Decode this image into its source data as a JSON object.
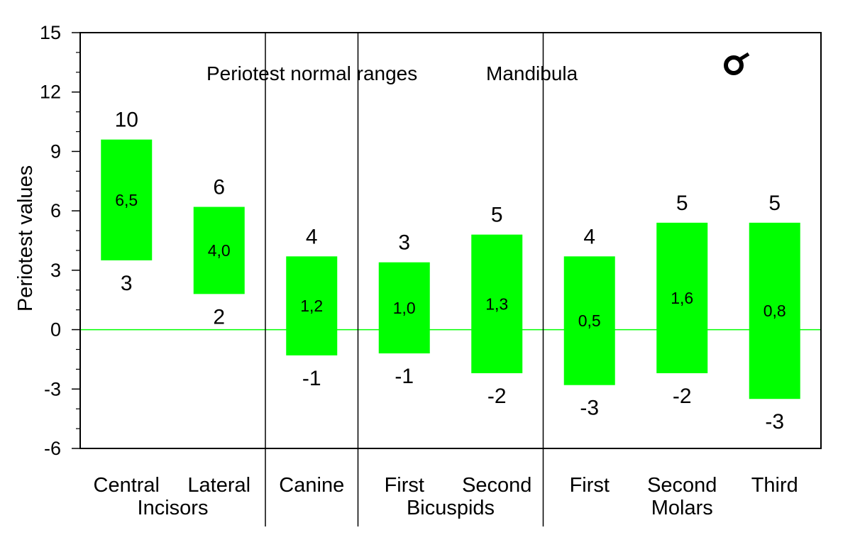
{
  "chart_data": {
    "type": "bar",
    "title": "Periotest normal ranges",
    "subtitle": "Mandibula",
    "ylabel": "Periotest values",
    "xlabel": "",
    "ylim": [
      -6,
      15
    ],
    "yticks": [
      15,
      12,
      9,
      6,
      3,
      0,
      -3,
      -6
    ],
    "ytick_labels": [
      "15",
      "12",
      "9",
      "6",
      "3",
      "0",
      "-3",
      "-6"
    ],
    "grid": false,
    "reference_line": 0,
    "bar_color": "#00ff00",
    "reference_line_color": "#00ff00",
    "categories": [
      "Central",
      "Lateral",
      "Canine",
      "First",
      "Second",
      "First",
      "Second",
      "Third"
    ],
    "groups": [
      "Incisors",
      "",
      "Bicuspids",
      "Molars"
    ],
    "ranges": [
      {
        "low": 3.5,
        "high": 9.6,
        "top_label": "10",
        "bottom_label": "3",
        "mean_label": "6,5"
      },
      {
        "low": 1.8,
        "high": 6.2,
        "top_label": "6",
        "bottom_label": "2",
        "mean_label": "4,0"
      },
      {
        "low": -1.3,
        "high": 3.7,
        "top_label": "4",
        "bottom_label": "-1",
        "mean_label": "1,2"
      },
      {
        "low": -1.2,
        "high": 3.4,
        "top_label": "3",
        "bottom_label": "-1",
        "mean_label": "1,0"
      },
      {
        "low": -2.2,
        "high": 4.8,
        "top_label": "5",
        "bottom_label": "-2",
        "mean_label": "1,3"
      },
      {
        "low": -2.8,
        "high": 3.7,
        "top_label": "4",
        "bottom_label": "-3",
        "mean_label": "0,5"
      },
      {
        "low": -2.2,
        "high": 5.4,
        "top_label": "5",
        "bottom_label": "-2",
        "mean_label": "1,6"
      },
      {
        "low": -3.5,
        "high": 5.4,
        "top_label": "5",
        "bottom_label": "-3",
        "mean_label": "0,8"
      }
    ]
  },
  "icon": {
    "name": "male-symbol-icon"
  }
}
